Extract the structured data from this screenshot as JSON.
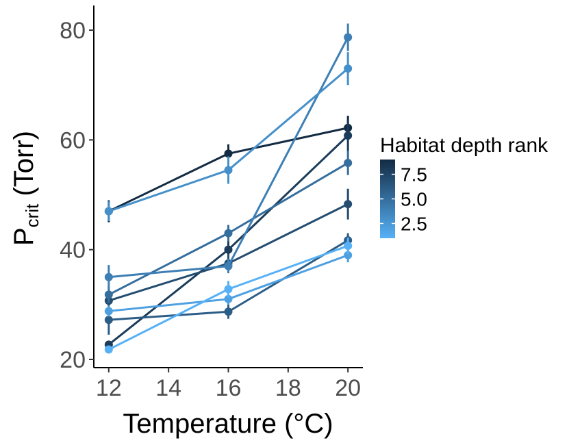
{
  "chart_data": {
    "type": "line",
    "xlabel": "Temperature (°C)",
    "ylabel_main": "P",
    "ylabel_sub": "crit",
    "ylabel_rest": " (Torr)",
    "xlim": [
      11.5,
      20.5
    ],
    "ylim": [
      18.5,
      84.5
    ],
    "xticks": [
      12,
      14,
      16,
      18,
      20
    ],
    "yticks": [
      20,
      40,
      60,
      80
    ],
    "legend": {
      "title": "Habitat depth rank",
      "placement": "right",
      "ticks": [
        7.5,
        5.0,
        2.5
      ],
      "tick_labels": [
        "7.5",
        "5.0",
        "2.5"
      ],
      "range": [
        1,
        9
      ],
      "color_low": "#56B1F7",
      "color_high": "#132B43"
    },
    "series": [
      {
        "rank": 9,
        "x": [
          12,
          16,
          20
        ],
        "y": [
          47.0,
          57.5,
          62.2
        ],
        "err": [
          2.0,
          1.7,
          2.2
        ]
      },
      {
        "rank": 8,
        "x": [
          12,
          16,
          20
        ],
        "y": [
          22.7,
          40.0,
          60.8
        ],
        "err": [
          0.6,
          2.3,
          2.8
        ]
      },
      {
        "rank": 7,
        "x": [
          12,
          16,
          20
        ],
        "y": [
          30.7,
          37.5,
          48.3
        ],
        "err": [
          1.8,
          1.7,
          2.8
        ]
      },
      {
        "rank": 6,
        "x": [
          12,
          16,
          20
        ],
        "y": [
          27.2,
          28.7,
          41.7
        ],
        "err": [
          2.7,
          1.3,
          1.3
        ]
      },
      {
        "rank": 5,
        "x": [
          12,
          16,
          20
        ],
        "y": [
          31.8,
          43.0,
          55.8
        ],
        "err": [
          1.5,
          1.5,
          2.2
        ]
      },
      {
        "rank": 4,
        "x": [
          12,
          16,
          20
        ],
        "y": [
          35.0,
          37.0,
          78.7
        ],
        "err": [
          2.2,
          1.3,
          2.5
        ]
      },
      {
        "rank": 3,
        "x": [
          12,
          16,
          20
        ],
        "y": [
          47.0,
          54.5,
          73.0
        ],
        "err": [
          1.8,
          2.5,
          3.0
        ]
      },
      {
        "rank": 2,
        "x": [
          12,
          16,
          20
        ],
        "y": [
          28.8,
          31.0,
          39.0
        ],
        "err": [
          1.0,
          1.0,
          1.3
        ]
      },
      {
        "rank": 1,
        "x": [
          12,
          16,
          20
        ],
        "y": [
          21.8,
          32.8,
          40.7
        ],
        "err": [
          0.5,
          1.5,
          1.5
        ]
      }
    ]
  }
}
